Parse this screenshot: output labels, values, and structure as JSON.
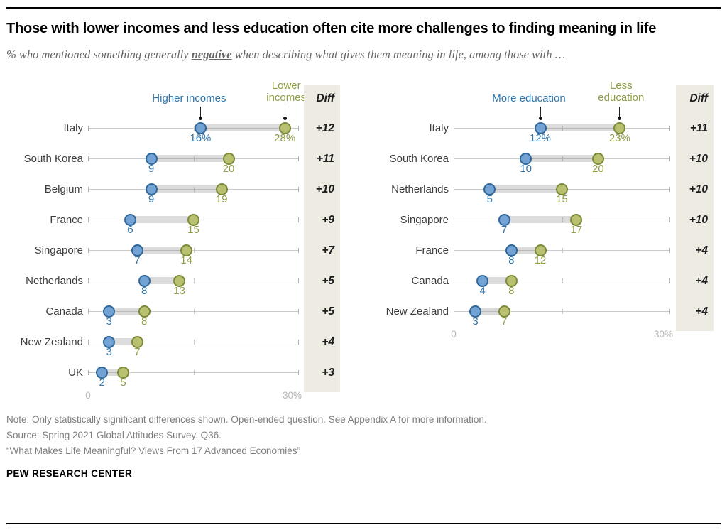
{
  "page": {
    "title": "Those with lower incomes and less education often cite more challenges to finding meaning in life",
    "subtitle_prefix": "% who mentioned something generally ",
    "subtitle_emphasis": "negative",
    "subtitle_suffix": " when describing what gives them meaning in life, among those with …",
    "notes": [
      "Note: Only statistically significant differences shown. Open-ended question. See Appendix A for more information.",
      "Source: Spring 2021 Global Attitudes Survey. Q36.",
      "“What Makes Life Meaningful? Views From 17 Advanced Economies”"
    ],
    "brand": "PEW RESEARCH CENTER"
  },
  "colors": {
    "blue_fill": "#73a3d4",
    "blue_stroke": "#31689b",
    "blue_text": "#2f76ac",
    "olive_fill": "#b9c06f",
    "olive_stroke": "#7c8b3a",
    "olive_text": "#8f9d44",
    "diff_bg": "#eeebe3",
    "diff_text": "#1d1d1d"
  },
  "chart_data": [
    {
      "type": "dumbbell",
      "legend": {
        "blue": "Higher incomes",
        "olive": "Lower incomes",
        "olive_lines": [
          "Lower",
          "incomes"
        ]
      },
      "diff_header": "Diff",
      "axis": {
        "min": 0,
        "max": 30,
        "min_label": "0",
        "max_label": "30%",
        "mid_tick": 15
      },
      "rows": [
        {
          "country": "Italy",
          "blue": 16,
          "blue_label": "16%",
          "olive": 28,
          "olive_label": "28%",
          "diff": "+12"
        },
        {
          "country": "South Korea",
          "blue": 9,
          "blue_label": "9",
          "olive": 20,
          "olive_label": "20",
          "diff": "+11"
        },
        {
          "country": "Belgium",
          "blue": 9,
          "blue_label": "9",
          "olive": 19,
          "olive_label": "19",
          "diff": "+10"
        },
        {
          "country": "France",
          "blue": 6,
          "blue_label": "6",
          "olive": 15,
          "olive_label": "15",
          "diff": "+9"
        },
        {
          "country": "Singapore",
          "blue": 7,
          "blue_label": "7",
          "olive": 14,
          "olive_label": "14",
          "diff": "+7"
        },
        {
          "country": "Netherlands",
          "blue": 8,
          "blue_label": "8",
          "olive": 13,
          "olive_label": "13",
          "diff": "+5"
        },
        {
          "country": "Canada",
          "blue": 3,
          "blue_label": "3",
          "olive": 8,
          "olive_label": "8",
          "diff": "+5"
        },
        {
          "country": "New Zealand",
          "blue": 3,
          "blue_label": "3",
          "olive": 7,
          "olive_label": "7",
          "diff": "+4"
        },
        {
          "country": "UK",
          "blue": 2,
          "blue_label": "2",
          "olive": 5,
          "olive_label": "5",
          "diff": "+3"
        }
      ]
    },
    {
      "type": "dumbbell",
      "legend": {
        "blue": "More education",
        "olive": "Less education",
        "olive_lines": [
          "Less",
          "education"
        ]
      },
      "diff_header": "Diff",
      "axis": {
        "min": 0,
        "max": 30,
        "min_label": "0",
        "max_label": "30%",
        "mid_tick": 15
      },
      "rows": [
        {
          "country": "Italy",
          "blue": 12,
          "blue_label": "12%",
          "olive": 23,
          "olive_label": "23%",
          "diff": "+11"
        },
        {
          "country": "South Korea",
          "blue": 10,
          "blue_label": "10",
          "olive": 20,
          "olive_label": "20",
          "diff": "+10"
        },
        {
          "country": "Netherlands",
          "blue": 5,
          "blue_label": "5",
          "olive": 15,
          "olive_label": "15",
          "diff": "+10"
        },
        {
          "country": "Singapore",
          "blue": 7,
          "blue_label": "7",
          "olive": 17,
          "olive_label": "17",
          "diff": "+10"
        },
        {
          "country": "France",
          "blue": 8,
          "blue_label": "8",
          "olive": 12,
          "olive_label": "12",
          "diff": "+4"
        },
        {
          "country": "Canada",
          "blue": 4,
          "blue_label": "4",
          "olive": 8,
          "olive_label": "8",
          "diff": "+4"
        },
        {
          "country": "New Zealand",
          "blue": 3,
          "blue_label": "3",
          "olive": 7,
          "olive_label": "7",
          "diff": "+4"
        }
      ]
    }
  ]
}
